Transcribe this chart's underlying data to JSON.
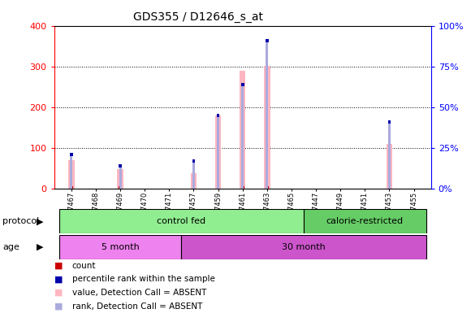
{
  "title": "GDS355 / D12646_s_at",
  "samples": [
    "GSM7467",
    "GSM7468",
    "GSM7469",
    "GSM7470",
    "GSM7471",
    "GSM7457",
    "GSM7459",
    "GSM7461",
    "GSM7463",
    "GSM7465",
    "GSM7447",
    "GSM7449",
    "GSM7451",
    "GSM7453",
    "GSM7455"
  ],
  "value_absent": [
    70,
    0,
    48,
    0,
    0,
    38,
    180,
    290,
    302,
    0,
    0,
    0,
    0,
    110,
    0
  ],
  "rank_absent_pct": [
    22,
    0,
    15,
    0,
    0,
    18,
    46,
    65,
    92,
    0,
    0,
    0,
    0,
    42,
    0
  ],
  "ylim_left": [
    0,
    400
  ],
  "ylim_right": [
    0,
    100
  ],
  "yticks_left": [
    0,
    100,
    200,
    300,
    400
  ],
  "ytick_labels_left": [
    "0",
    "100",
    "200",
    "300",
    "400"
  ],
  "yticks_right": [
    0,
    25,
    50,
    75,
    100
  ],
  "ytick_labels_right": [
    "0%",
    "25%",
    "50%",
    "75%",
    "100%"
  ],
  "protocol_groups": [
    {
      "label": "control fed",
      "start": 0,
      "end": 9,
      "color": "#90EE90"
    },
    {
      "label": "calorie-restricted",
      "start": 10,
      "end": 14,
      "color": "#66CD66"
    }
  ],
  "age_groups": [
    {
      "label": "5 month",
      "start": 0,
      "end": 4,
      "color": "#EE82EE"
    },
    {
      "label": "30 month",
      "start": 5,
      "end": 14,
      "color": "#CC55CC"
    }
  ],
  "value_absent_color": "#FFB6C1",
  "rank_absent_color": "#AAAADD",
  "count_color": "#CC0000",
  "rank_color": "#0000AA",
  "plot_bg": "#FFFFFF",
  "left_axis_color": "red",
  "right_axis_color": "blue"
}
